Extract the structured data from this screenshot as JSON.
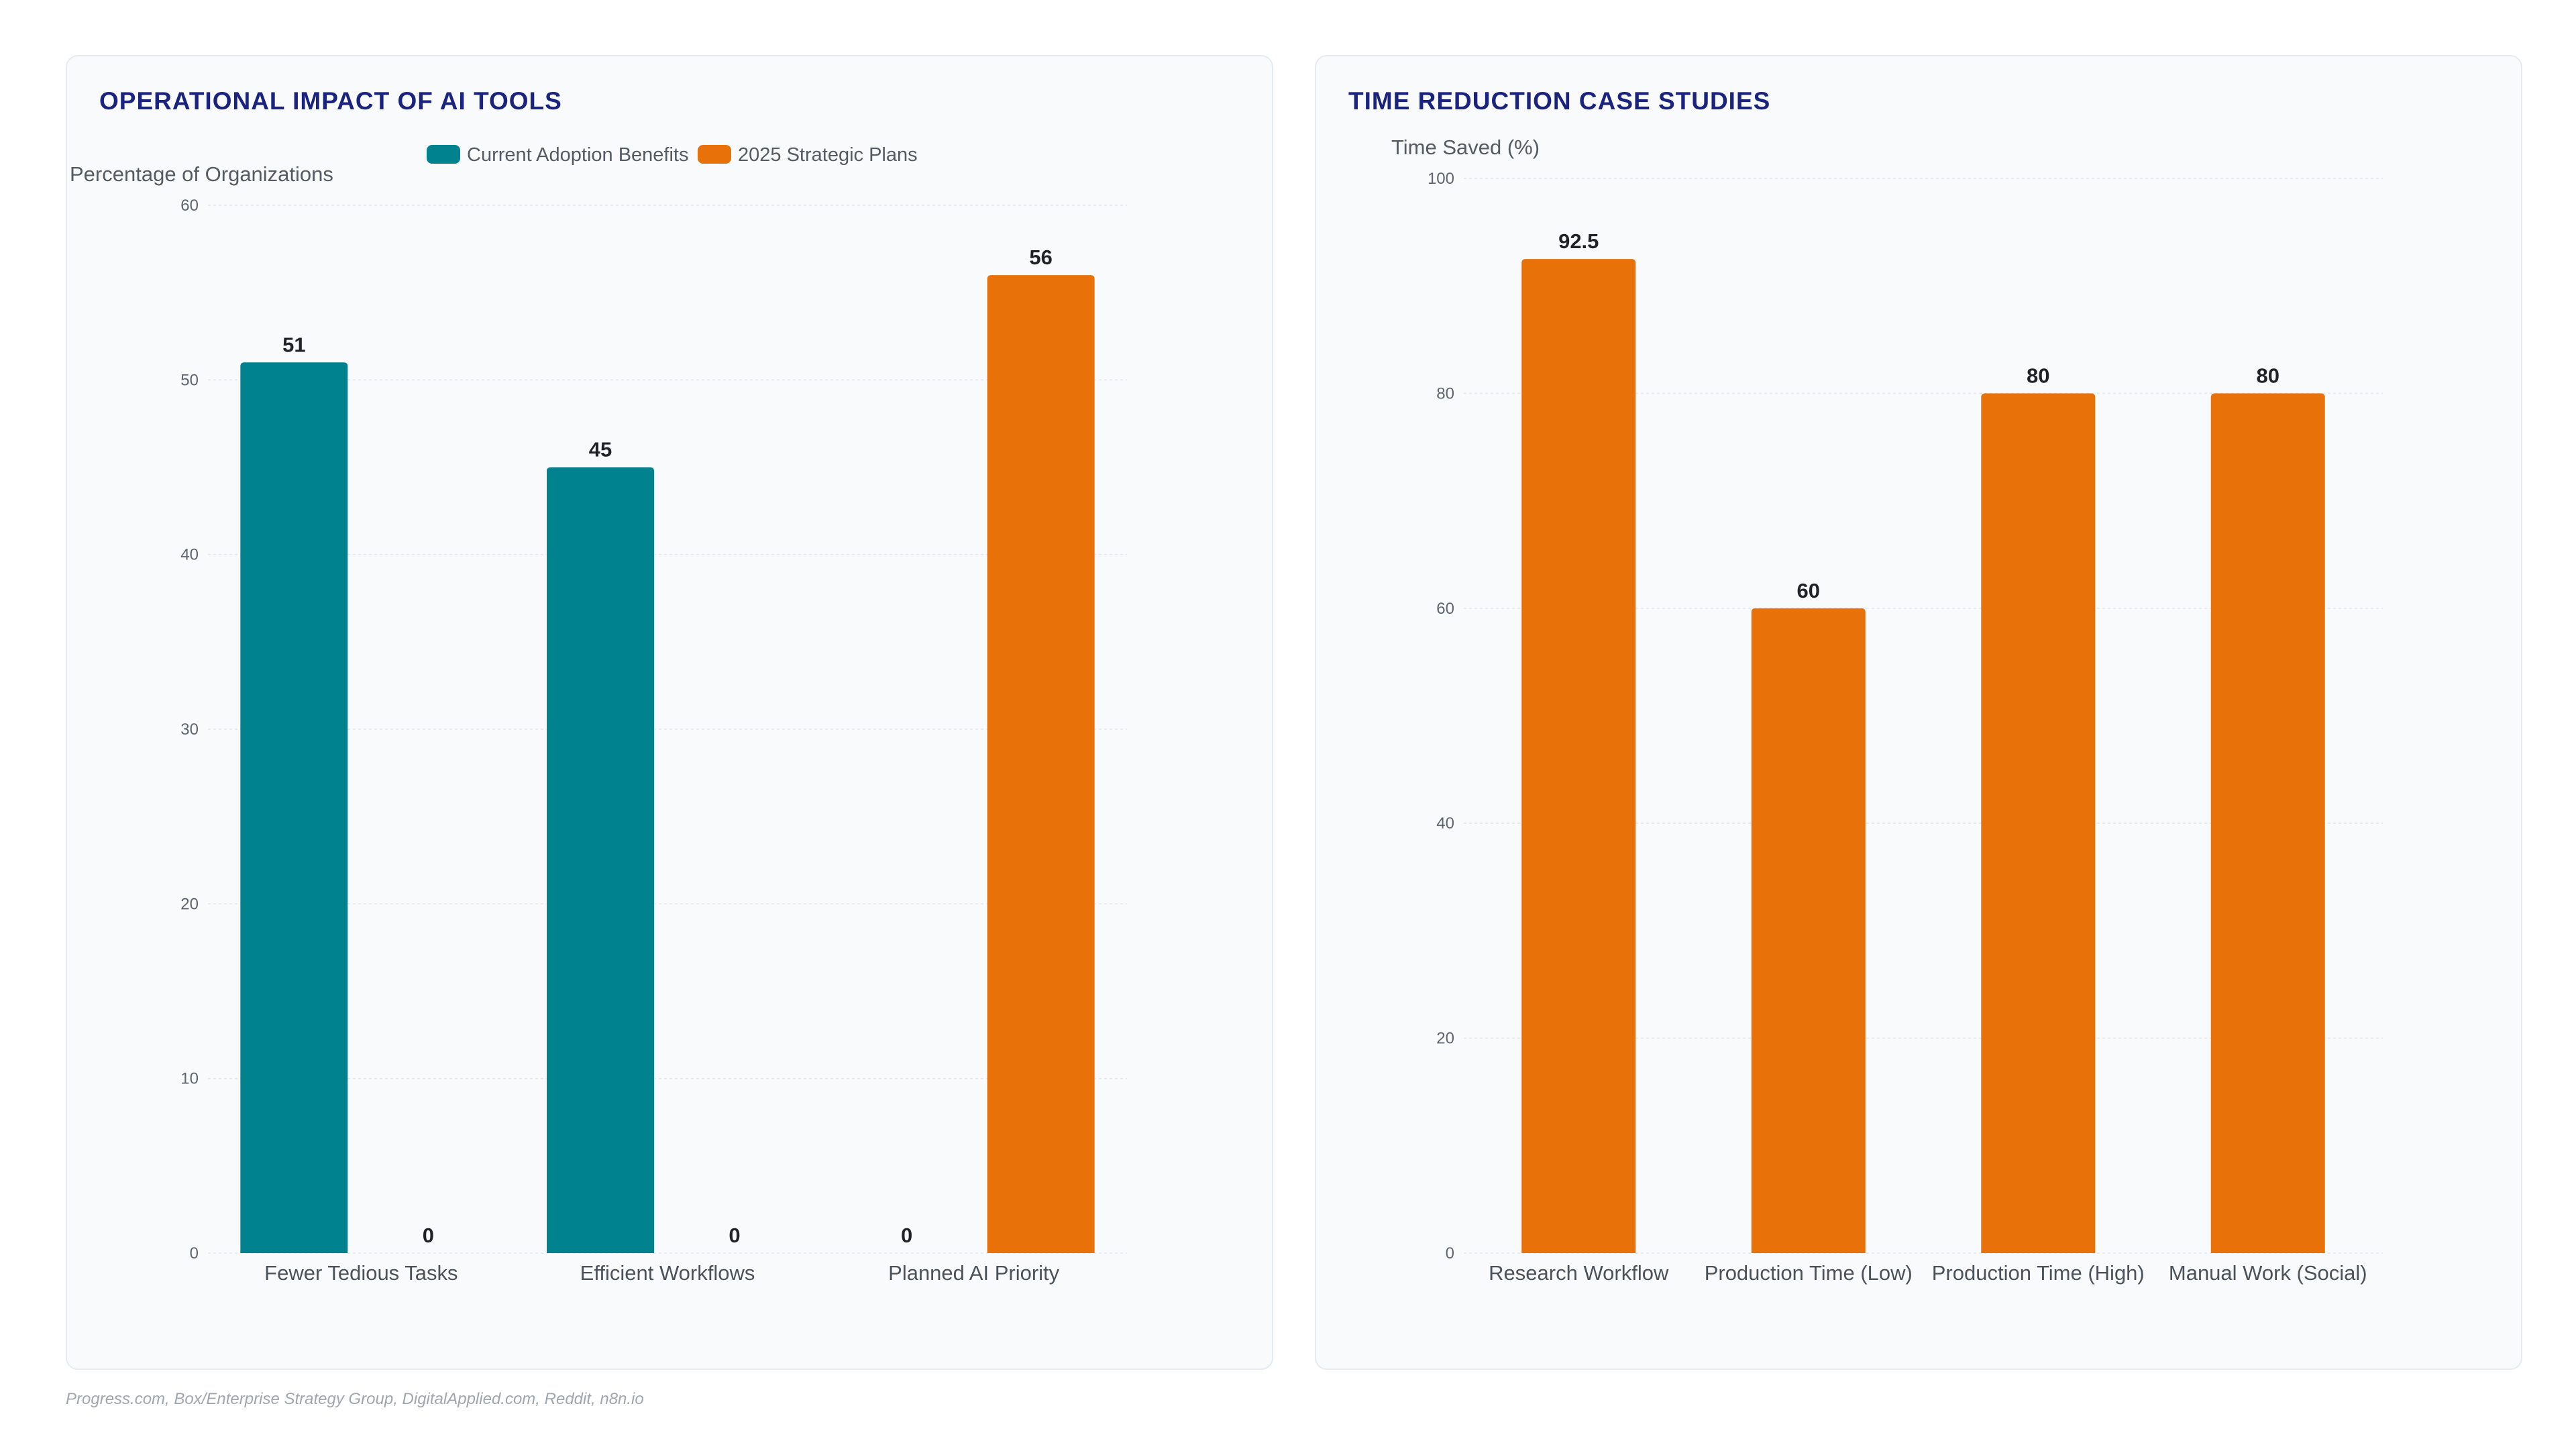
{
  "charts": [
    {
      "title": "OPERATIONAL IMPACT OF AI TOOLS",
      "ylabel": "Percentage of Organizations",
      "legend": [
        "Current Adoption Benefits",
        "2025 Strategic Plans"
      ]
    },
    {
      "title": "TIME REDUCTION CASE STUDIES",
      "ylabel": "Time Saved (%)"
    }
  ],
  "source": "Progress.com, Box/Enterprise Strategy Group, DigitalApplied.com, Reddit, n8n.io",
  "colors": {
    "teal": "#00838f",
    "orange": "#e8710a",
    "title": "#1a237e"
  },
  "chart_data": [
    {
      "type": "bar",
      "title": "OPERATIONAL IMPACT OF AI TOOLS",
      "xlabel": "",
      "ylabel": "Percentage of Organizations",
      "categories": [
        "Fewer Tedious Tasks",
        "Efficient Workflows",
        "Planned AI Priority"
      ],
      "series": [
        {
          "name": "Current Adoption Benefits",
          "values": [
            51,
            45,
            0
          ],
          "color": "#00838f"
        },
        {
          "name": "2025 Strategic Plans",
          "values": [
            0,
            0,
            56
          ],
          "color": "#e8710a"
        }
      ],
      "ylim": [
        0,
        60
      ],
      "yticks": [
        0,
        10,
        20,
        30,
        40,
        50,
        60
      ],
      "grid": true,
      "legend": "top-center"
    },
    {
      "type": "bar",
      "title": "TIME REDUCTION CASE STUDIES",
      "xlabel": "",
      "ylabel": "Time Saved (%)",
      "categories": [
        "Research Workflow",
        "Production Time (Low)",
        "Production Time (High)",
        "Manual Work (Social)"
      ],
      "series": [
        {
          "values": [
            92.5,
            60,
            80,
            80
          ],
          "color": "#e8710a"
        }
      ],
      "ylim": [
        0,
        100
      ],
      "yticks": [
        0,
        20,
        40,
        60,
        80,
        100
      ],
      "grid": true
    }
  ]
}
